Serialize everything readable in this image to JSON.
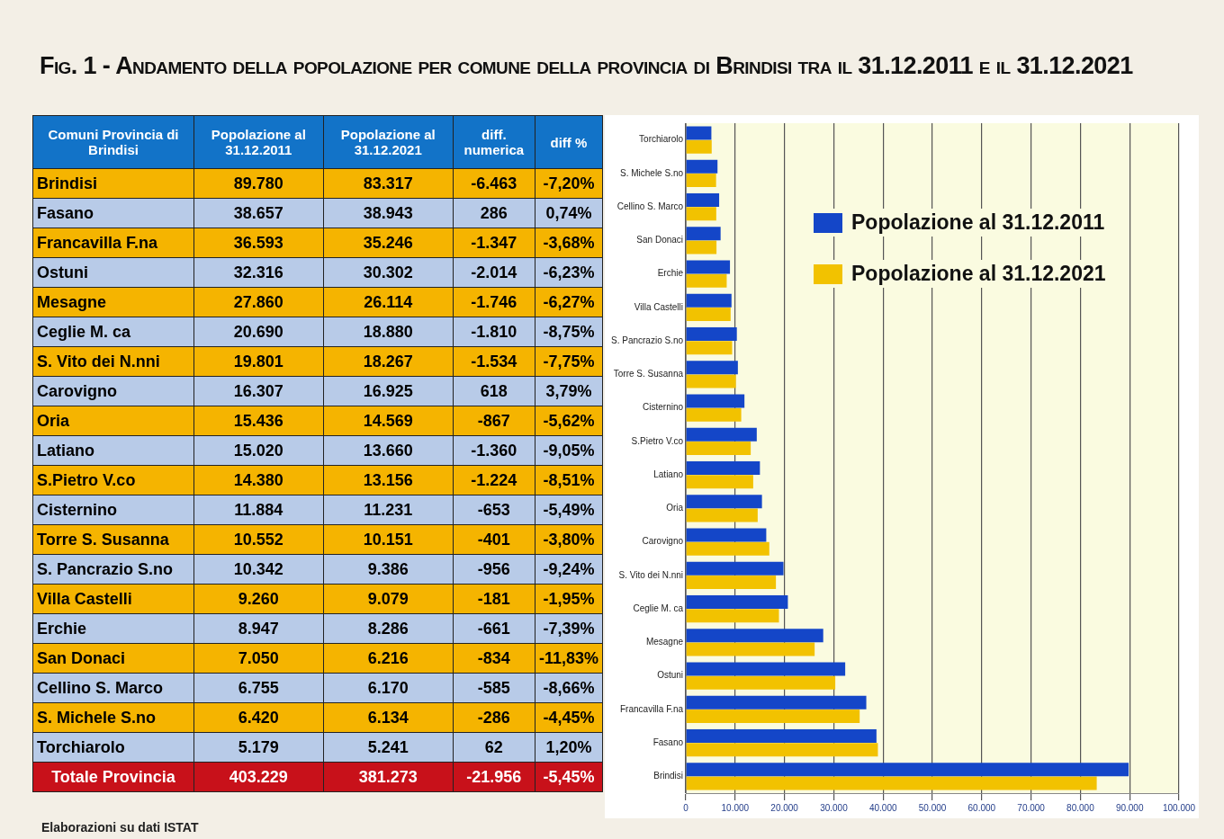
{
  "chart_data": [
    {
      "type": "other",
      "title": "Fig. 1 - Andamento della popolazione per comune della provincia di Brindisi tra il 31.12.2011 e il 31.12.2021",
      "ylabel": "Comuni Provincia di Brindisi",
      "categories": [
        "Brindisi",
        "Fasano",
        "Francavilla F.na",
        "Ostuni",
        "Mesagne",
        "Ceglie M. ca",
        "S. Vito dei N.nni",
        "Carovigno",
        "Oria",
        "Latiano",
        "S.Pietro V.co",
        "Cisternino",
        "Torre S. Susanna",
        "S. Pancrazio S.no",
        "Villa Castelli",
        "Erchie",
        "San Donaci",
        "Cellino S. Marco",
        "S. Michele S.no",
        "Torchiarolo",
        "Totale Provincia"
      ],
      "series": [
        {
          "name": "Popolazione al 31.12.2011",
          "colors": [
            "#f5b400",
            "#b8cbe8",
            "#f5b400",
            "#b8cbe8",
            "#f5b400",
            "#b8cbe8",
            "#f5b400",
            "#b8cbe8",
            "#f5b400",
            "#b8cbe8",
            "#f5b400",
            "#b8cbe8",
            "#f5b400",
            "#b8cbe8",
            "#f5b400",
            "#b8cbe8",
            "#f5b400",
            "#b8cbe8",
            "#f5b400",
            "#b8cbe8",
            "#c8111a"
          ],
          "values": [
            89780,
            38657,
            36593,
            32316,
            27860,
            20690,
            19801,
            16307,
            15436,
            15020,
            14380,
            11884,
            10552,
            10342,
            9260,
            8947,
            7050,
            6755,
            6420,
            5179,
            403229
          ],
          "value_labels": [
            "89.780",
            "38.657",
            "36.593",
            "32.316",
            "27.860",
            "20.690",
            "19.801",
            "16.307",
            "15.436",
            "15.020",
            "14.380",
            "11.884",
            "10.552",
            "10.342",
            "9.260",
            "8.947",
            "7.050",
            "6.755",
            "6.420",
            "5.179",
            "403.229"
          ]
        },
        {
          "name": "Popolazione al 31.12.2021",
          "colors": [
            "#f5b400",
            "#b8cbe8",
            "#f5b400",
            "#b8cbe8",
            "#f5b400",
            "#b8cbe8",
            "#f5b400",
            "#b8cbe8",
            "#f5b400",
            "#b8cbe8",
            "#f5b400",
            "#b8cbe8",
            "#f5b400",
            "#b8cbe8",
            "#f5b400",
            "#b8cbe8",
            "#f5b400",
            "#b8cbe8",
            "#f5b400",
            "#b8cbe8",
            "#c8111a"
          ],
          "values": [
            83317,
            38943,
            35246,
            30302,
            26114,
            18880,
            18267,
            16925,
            14569,
            13660,
            13156,
            11231,
            10151,
            9386,
            9079,
            8286,
            6216,
            6170,
            6134,
            5241,
            381273
          ],
          "value_labels": [
            "83.317",
            "38.943",
            "35.246",
            "30.302",
            "26.114",
            "18.880",
            "18.267",
            "16.925",
            "14.569",
            "13.660",
            "13.156",
            "11.231",
            "10.151",
            "9.386",
            "9.079",
            "8.286",
            "6.216",
            "6.170",
            "6.134",
            "5.241",
            "381.273"
          ]
        },
        {
          "name": "diff. numerica",
          "colors": [
            "#f5b400",
            "#b8cbe8",
            "#f5b400",
            "#b8cbe8",
            "#f5b400",
            "#b8cbe8",
            "#f5b400",
            "#b8cbe8",
            "#f5b400",
            "#b8cbe8",
            "#f5b400",
            "#b8cbe8",
            "#f5b400",
            "#b8cbe8",
            "#f5b400",
            "#b8cbe8",
            "#f5b400",
            "#b8cbe8",
            "#f5b400",
            "#b8cbe8",
            "#c8111a"
          ],
          "values": [
            -6463,
            286,
            -1347,
            -2014,
            -1746,
            -1810,
            -1534,
            618,
            -867,
            -1360,
            -1224,
            -653,
            -401,
            -956,
            -181,
            -661,
            -834,
            -585,
            -286,
            62,
            -21956
          ],
          "value_labels": [
            "-6.463",
            "286",
            "-1.347",
            "-2.014",
            "-1.746",
            "-1.810",
            "-1.534",
            "618",
            "-867",
            "-1.360",
            "-1.224",
            "-653",
            "-401",
            "-956",
            "-181",
            "-661",
            "-834",
            "-585",
            "-286",
            "62",
            "-21.956"
          ]
        },
        {
          "name": "diff %",
          "colors": [
            "#f5b400",
            "#b8cbe8",
            "#f5b400",
            "#b8cbe8",
            "#f5b400",
            "#b8cbe8",
            "#f5b400",
            "#b8cbe8",
            "#f5b400",
            "#b8cbe8",
            "#f5b400",
            "#b8cbe8",
            "#f5b400",
            "#b8cbe8",
            "#f5b400",
            "#b8cbe8",
            "#f5b400",
            "#b8cbe8",
            "#f5b400",
            "#b8cbe8",
            "#c8111a"
          ],
          "values": [
            -7.2,
            0.74,
            -3.68,
            -6.23,
            -6.27,
            -8.75,
            -7.75,
            3.79,
            -5.62,
            -9.05,
            -8.51,
            -5.49,
            -3.8,
            -9.24,
            -1.95,
            -7.39,
            -11.83,
            -8.66,
            -4.45,
            1.2,
            -5.45
          ],
          "value_labels": [
            "-7,20%",
            "0,74%",
            "-3,68%",
            "-6,23%",
            "-6,27%",
            "-8,75%",
            "-7,75%",
            "3,79%",
            "-5,62%",
            "-9,05%",
            "-8,51%",
            "-5,49%",
            "-3,80%",
            "-9,24%",
            "-1,95%",
            "-7,39%",
            "-11,83%",
            "-8,66%",
            "-4,45%",
            "1,20%",
            "-5,45%"
          ]
        }
      ],
      "annotations": [
        "Elaborazioni su dati ISTAT"
      ]
    },
    {
      "type": "bar",
      "orientation": "horizontal",
      "categories": [
        "Torchiarolo",
        "S. Michele S.no",
        "Cellino S. Marco",
        "San Donaci",
        "Erchie",
        "Villa Castelli",
        "S. Pancrazio S.no",
        "Torre S. Susanna",
        "Cisternino",
        "S.Pietro V.co",
        "Latiano",
        "Oria",
        "Carovigno",
        "S. Vito dei N.nni",
        "Ceglie M. ca",
        "Mesagne",
        "Ostuni",
        "Francavilla F.na",
        "Fasano",
        "Brindisi"
      ],
      "series": [
        {
          "name": "Popolazione al 31.12.2011",
          "color": "#1446c8",
          "values": [
            5179,
            6420,
            6755,
            7050,
            8947,
            9260,
            10342,
            10552,
            11884,
            14380,
            15020,
            15436,
            16307,
            19801,
            20690,
            27860,
            32316,
            36593,
            38657,
            89780
          ]
        },
        {
          "name": "Popolazione al 31.12.2021",
          "color": "#f2c200",
          "values": [
            5241,
            6134,
            6170,
            6216,
            8286,
            9079,
            9386,
            10151,
            11231,
            13156,
            13660,
            14569,
            16925,
            18267,
            18880,
            26114,
            30302,
            35246,
            38943,
            83317
          ]
        }
      ],
      "xlim": [
        0,
        100000
      ],
      "xticks": [
        {
          "value": 0,
          "label": "0"
        },
        {
          "value": 10000,
          "label": "10.000"
        },
        {
          "value": 20000,
          "label": "20.000"
        },
        {
          "value": 30000,
          "label": "30.000"
        },
        {
          "value": 40000,
          "label": "40.000"
        },
        {
          "value": 50000,
          "label": "50.000"
        },
        {
          "value": 60000,
          "label": "60.000"
        },
        {
          "value": 70000,
          "label": "70.000"
        },
        {
          "value": 80000,
          "label": "80.000"
        },
        {
          "value": 90000,
          "label": "90.000"
        },
        {
          "value": 100000,
          "label": "100.000"
        }
      ],
      "grid": "x",
      "legend": "top right"
    }
  ]
}
